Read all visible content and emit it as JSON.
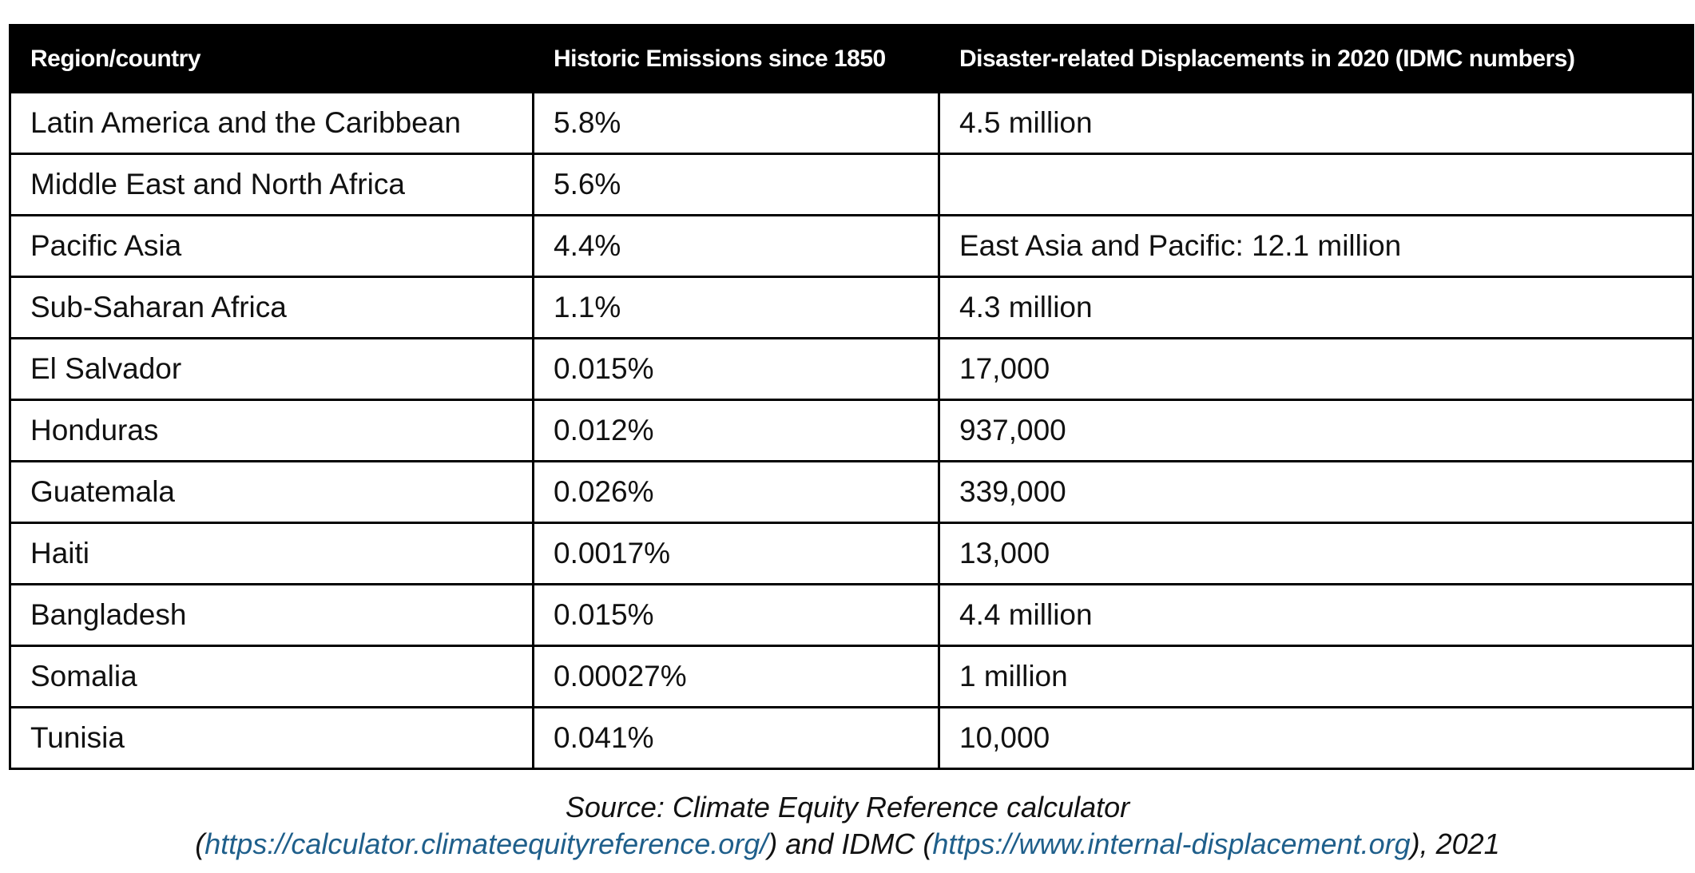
{
  "table": {
    "headers": [
      "Region/country",
      "Historic Emissions since 1850",
      "Disaster-related Displacements in 2020 (IDMC numbers)"
    ],
    "rows": [
      [
        "Latin America and the Caribbean",
        "5.8%",
        "4.5 million"
      ],
      [
        "Middle East and North Africa",
        "5.6%",
        null
      ],
      [
        "Pacific Asia",
        "4.4%",
        "East Asia and Pacific: 12.1 million"
      ],
      [
        "Sub-Saharan Africa",
        "1.1%",
        "4.3 million"
      ],
      [
        "El Salvador",
        "0.015%",
        "17,000"
      ],
      [
        "Honduras",
        "0.012%",
        "937,000"
      ],
      [
        "Guatemala",
        "0.026%",
        "339,000"
      ],
      [
        "Haiti",
        "0.0017%",
        "13,000"
      ],
      [
        "Bangladesh",
        "0.015%",
        "4.4 million"
      ],
      [
        "Somalia",
        "0.00027%",
        "1 million"
      ],
      [
        "Tunisia",
        "0.041%",
        "10,000"
      ]
    ]
  },
  "source": {
    "line1": "Source: Climate Equity Reference calculator",
    "line2": [
      "(",
      "https://calculator.climateequityreference.org/",
      ") and IDMC (",
      "https://www.internal-displacement.org",
      "), 2021"
    ]
  }
}
